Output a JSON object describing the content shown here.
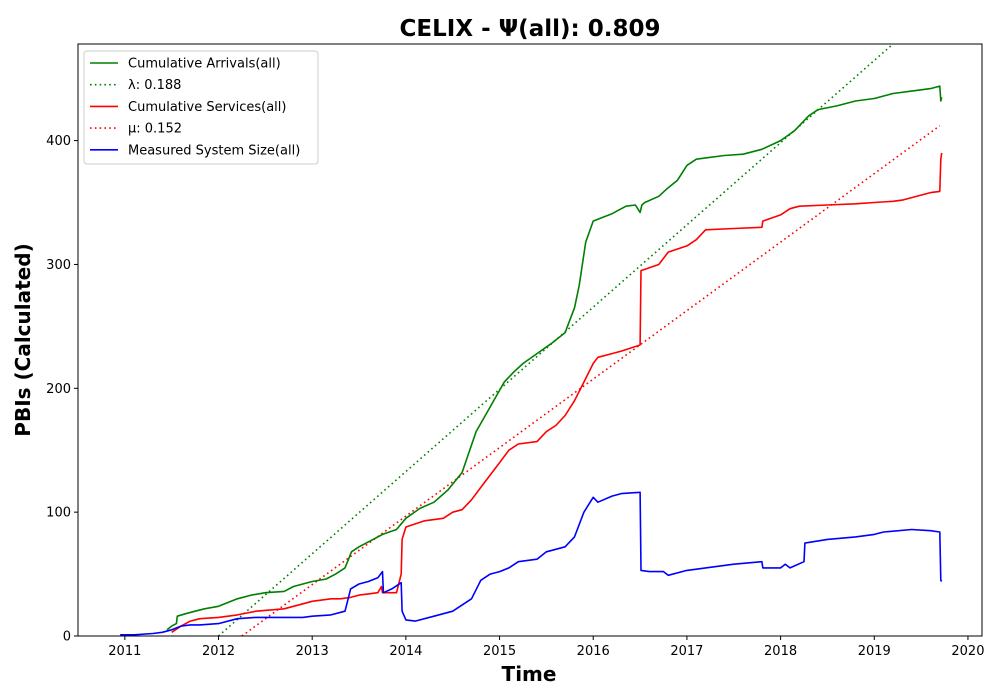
{
  "chart_data": {
    "type": "line",
    "title": "CELIX -  Ψ(all): 0.809",
    "xlabel": "Time",
    "ylabel": "PBIs (Calculated)",
    "xlim": [
      2010.5,
      2020.15
    ],
    "ylim": [
      0,
      478
    ],
    "x_ticks": [
      "2011",
      "2012",
      "2013",
      "2014",
      "2015",
      "2016",
      "2017",
      "2018",
      "2019",
      "2020"
    ],
    "y_ticks": [
      "0",
      "100",
      "200",
      "300",
      "400"
    ],
    "grid": false,
    "legend_position": "upper-left",
    "series": [
      {
        "name": "Cumulative Arrivals(all)",
        "style": "solid",
        "color": "#008000",
        "x": [
          2011.45,
          2011.5,
          2011.55,
          2011.56,
          2011.65,
          2011.75,
          2011.85,
          2012.0,
          2012.2,
          2012.35,
          2012.5,
          2012.7,
          2012.8,
          2013.0,
          2013.15,
          2013.25,
          2013.35,
          2013.42,
          2013.5,
          2013.65,
          2013.75,
          2013.9,
          2014.0,
          2014.15,
          2014.3,
          2014.45,
          2014.6,
          2014.75,
          2014.9,
          2015.05,
          2015.15,
          2015.25,
          2015.4,
          2015.55,
          2015.7,
          2015.8,
          2015.85,
          2015.92,
          2016.0,
          2016.1,
          2016.2,
          2016.35,
          2016.45,
          2016.5,
          2016.52,
          2016.55,
          2016.7,
          2016.8,
          2016.9,
          2017.0,
          2017.1,
          2017.2,
          2017.4,
          2017.6,
          2017.8,
          2018.0,
          2018.15,
          2018.3,
          2018.4,
          2018.6,
          2018.8,
          2019.0,
          2019.2,
          2019.4,
          2019.6,
          2019.7,
          2019.71,
          2019.72
        ],
        "values": [
          5,
          8,
          10,
          16,
          18,
          20,
          22,
          24,
          30,
          33,
          35,
          36,
          40,
          44,
          46,
          50,
          55,
          68,
          72,
          78,
          82,
          86,
          95,
          103,
          108,
          118,
          132,
          165,
          185,
          205,
          213,
          220,
          228,
          236,
          245,
          265,
          283,
          318,
          335,
          338,
          341,
          347,
          348,
          342,
          348,
          350,
          355,
          362,
          368,
          380,
          385,
          386,
          388,
          389,
          393,
          400,
          408,
          420,
          425,
          428,
          432,
          434,
          438,
          440,
          442,
          444,
          432,
          435
        ]
      },
      {
        "name": "λ: 0.188",
        "style": "dotted",
        "color": "#008000",
        "x": [
          2012.0,
          2019.2
        ],
        "values": [
          0,
          478
        ]
      },
      {
        "name": "Cumulative Services(all)",
        "style": "solid",
        "color": "#ff0000",
        "x": [
          2011.5,
          2011.6,
          2011.7,
          2011.8,
          2012.0,
          2012.2,
          2012.4,
          2012.7,
          2012.8,
          2013.0,
          2013.2,
          2013.3,
          2013.4,
          2013.5,
          2013.6,
          2013.7,
          2013.74,
          2013.75,
          2013.9,
          2013.95,
          2013.96,
          2014.0,
          2014.2,
          2014.4,
          2014.5,
          2014.6,
          2014.7,
          2014.8,
          2014.9,
          2015.0,
          2015.1,
          2015.2,
          2015.4,
          2015.5,
          2015.6,
          2015.7,
          2015.8,
          2015.9,
          2016.0,
          2016.05,
          2016.2,
          2016.3,
          2016.5,
          2016.51,
          2016.7,
          2016.8,
          2017.0,
          2017.1,
          2017.2,
          2017.5,
          2017.8,
          2017.81,
          2018.0,
          2018.1,
          2018.2,
          2018.5,
          2018.8,
          2019.0,
          2019.2,
          2019.3,
          2019.4,
          2019.6,
          2019.7,
          2019.71,
          2019.72
        ],
        "values": [
          3,
          8,
          12,
          14,
          15,
          17,
          20,
          22,
          24,
          28,
          30,
          30,
          31,
          33,
          34,
          35,
          40,
          35,
          35,
          50,
          78,
          88,
          93,
          95,
          100,
          102,
          110,
          120,
          130,
          140,
          150,
          155,
          157,
          165,
          170,
          178,
          190,
          205,
          220,
          225,
          228,
          230,
          235,
          295,
          300,
          310,
          315,
          320,
          328,
          329,
          330,
          335,
          340,
          345,
          347,
          348,
          349,
          350,
          351,
          352,
          354,
          358,
          359,
          385,
          390
        ]
      },
      {
        "name": "μ: 0.152",
        "style": "dotted",
        "color": "#ff0000",
        "x": [
          2012.25,
          2019.7
        ],
        "values": [
          0,
          412
        ]
      },
      {
        "name": "Measured System Size(all)",
        "style": "solid",
        "color": "#0000ff",
        "x": [
          2010.95,
          2011.1,
          2011.3,
          2011.4,
          2011.5,
          2011.6,
          2011.7,
          2011.8,
          2012.0,
          2012.2,
          2012.4,
          2012.6,
          2012.9,
          2013.0,
          2013.2,
          2013.35,
          2013.4,
          2013.41,
          2013.5,
          2013.6,
          2013.7,
          2013.75,
          2013.76,
          2013.85,
          2013.95,
          2013.96,
          2014.0,
          2014.1,
          2014.3,
          2014.5,
          2014.7,
          2014.8,
          2014.9,
          2015.0,
          2015.1,
          2015.2,
          2015.4,
          2015.5,
          2015.6,
          2015.7,
          2015.8,
          2015.9,
          2016.0,
          2016.05,
          2016.2,
          2016.3,
          2016.5,
          2016.51,
          2016.6,
          2016.75,
          2016.8,
          2017.0,
          2017.2,
          2017.5,
          2017.8,
          2017.81,
          2018.0,
          2018.05,
          2018.1,
          2018.25,
          2018.26,
          2018.5,
          2018.8,
          2019.0,
          2019.1,
          2019.4,
          2019.6,
          2019.7,
          2019.71,
          2019.72
        ],
        "values": [
          1,
          1,
          2,
          3,
          5,
          8,
          9,
          9,
          10,
          14,
          15,
          15,
          15,
          16,
          17,
          20,
          35,
          38,
          42,
          44,
          47,
          52,
          35,
          38,
          43,
          20,
          13,
          12,
          16,
          20,
          30,
          45,
          50,
          52,
          55,
          60,
          62,
          68,
          70,
          72,
          80,
          100,
          112,
          108,
          113,
          115,
          116,
          53,
          52,
          52,
          49,
          53,
          55,
          58,
          60,
          55,
          55,
          58,
          55,
          60,
          75,
          78,
          80,
          82,
          84,
          86,
          85,
          84,
          45,
          44
        ]
      }
    ]
  }
}
